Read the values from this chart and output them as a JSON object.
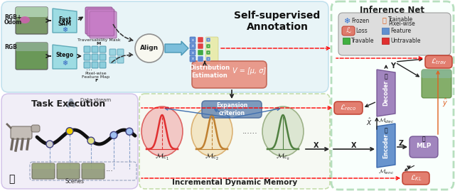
{
  "bg_outer": "#ffffff",
  "bg_top": "#dff0f5",
  "bg_task": "#ece8f5",
  "bg_memory": "#eef5e8",
  "bg_inference": "#f0fff0",
  "color_salmon": "#e88070",
  "color_blue_box": "#6090c8",
  "color_purple": "#9878b8",
  "color_cyan_box": "#90d8e0",
  "color_dark": "#202020",
  "annotation_top": "Self-supervised\nAnnotation",
  "annotation_inference": "Inference Net",
  "annotation_task": "Task Execution",
  "annotation_memory": "Incremental Dynamic Memory"
}
